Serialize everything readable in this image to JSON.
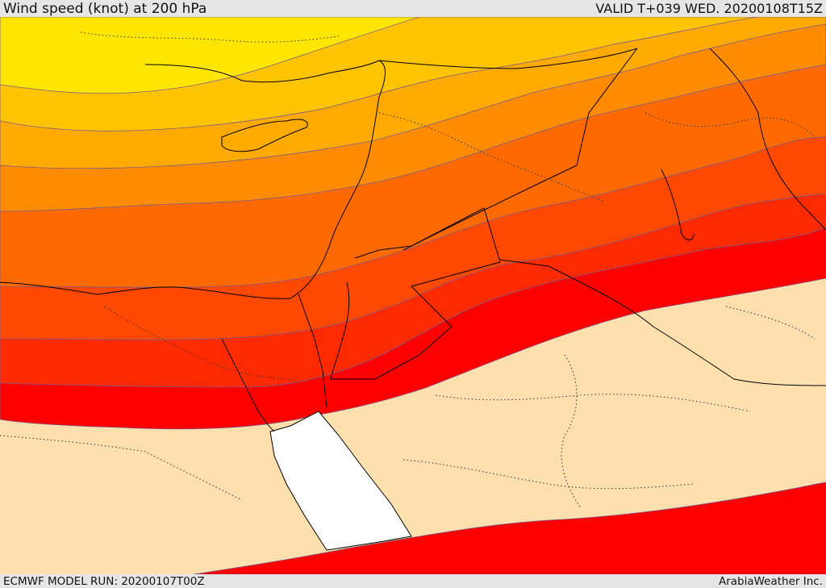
{
  "header": {
    "title": "Wind speed (knot) at 200 hPa",
    "valid": "VALID T+039 WED. 20200108T15Z"
  },
  "footer": {
    "model_run": "ECMWF MODEL RUN: 20200107T00Z",
    "credit": "ArabiaWeather Inc."
  },
  "colors": {
    "band_1": "#ffe600",
    "band_2": "#ffc400",
    "band_3": "#ffaa00",
    "band_4": "#ff8c00",
    "band_5": "#ff6a00",
    "band_6": "#ff4800",
    "band_7": "#ff2a00",
    "band_8": "#ff0000",
    "calm": "#fde0ad",
    "water": "#ffffff",
    "contour": "#7a5a8a",
    "border": "#000000"
  }
}
